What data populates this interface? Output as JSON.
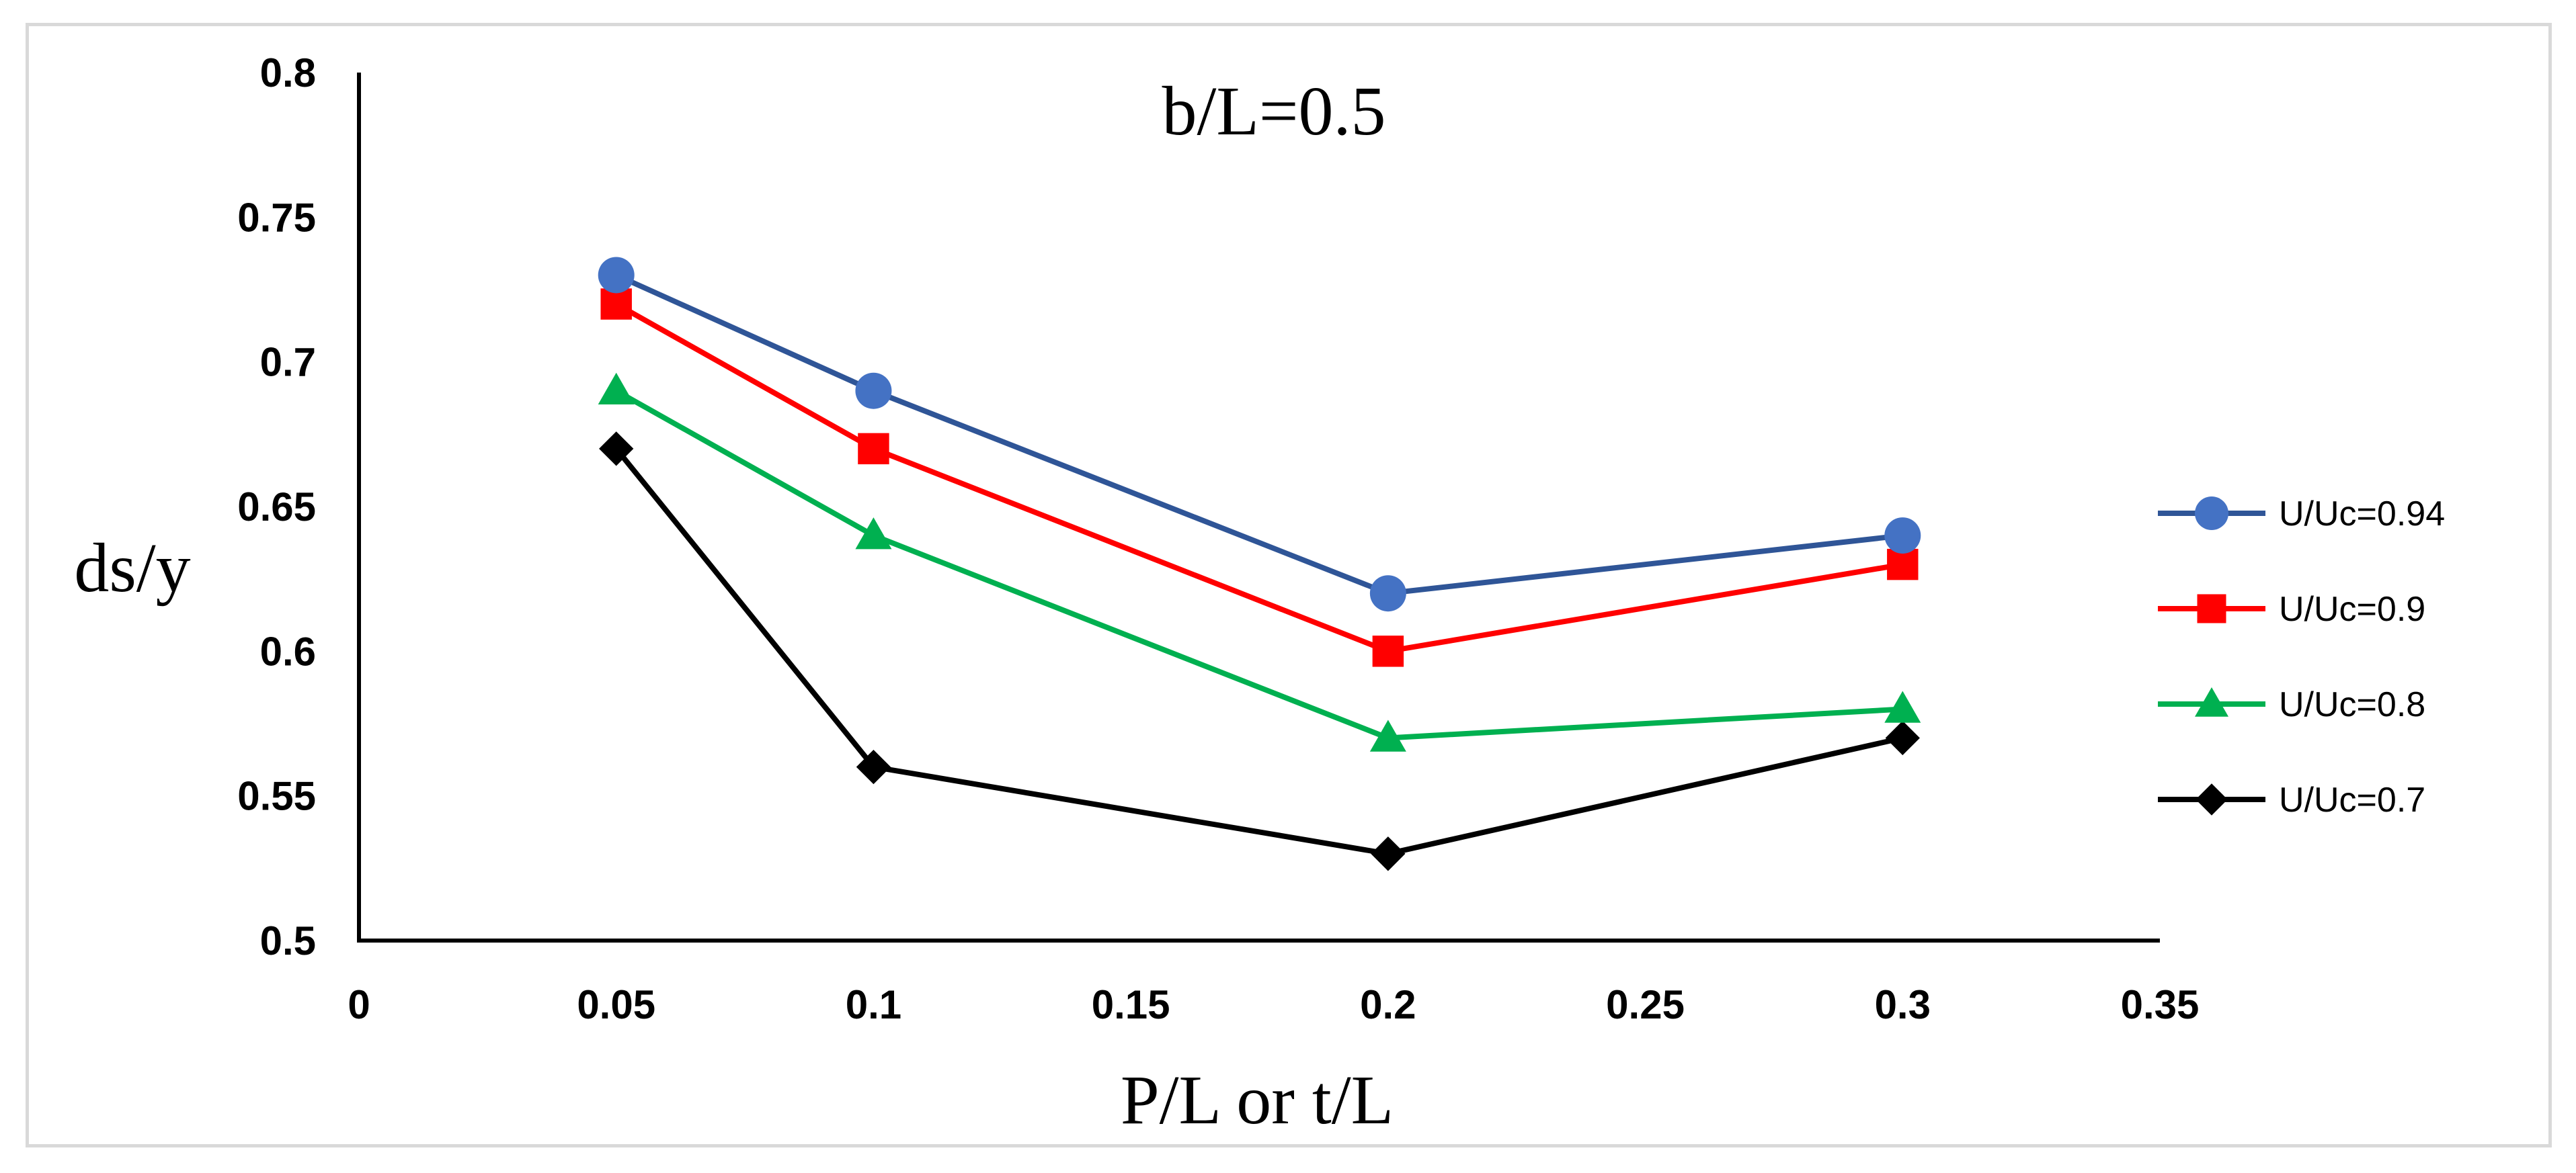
{
  "chart_data": {
    "type": "line",
    "title": "b/L=0.5",
    "xlabel": "P/L or t/L",
    "ylabel": "ds/y",
    "xlim": [
      0,
      0.35
    ],
    "ylim": [
      0.5,
      0.8
    ],
    "xticks": [
      "0",
      "0.05",
      "0.1",
      "0.15",
      "0.2",
      "0.25",
      "0.3",
      "0.35"
    ],
    "yticks": [
      "0.5",
      "0.55",
      "0.6",
      "0.65",
      "0.7",
      "0.75",
      "0.8"
    ],
    "x": [
      0.05,
      0.1,
      0.2,
      0.3
    ],
    "legend_position": "right",
    "grid": false,
    "series": [
      {
        "name": "U/Uc=0.94",
        "color": "#4472c4",
        "line_color": "#2f5597",
        "marker": "circle",
        "values": [
          0.73,
          0.69,
          0.62,
          0.64
        ]
      },
      {
        "name": "U/Uc=0.9",
        "color": "#ff0000",
        "line_color": "#ff0000",
        "marker": "square",
        "values": [
          0.72,
          0.67,
          0.6,
          0.63
        ]
      },
      {
        "name": "U/Uc=0.8",
        "color": "#00b050",
        "line_color": "#00b050",
        "marker": "triangle",
        "values": [
          0.69,
          0.64,
          0.57,
          0.58
        ]
      },
      {
        "name": "U/Uc=0.7",
        "color": "#000000",
        "line_color": "#000000",
        "marker": "diamond",
        "values": [
          0.67,
          0.56,
          0.53,
          0.57
        ]
      }
    ]
  }
}
